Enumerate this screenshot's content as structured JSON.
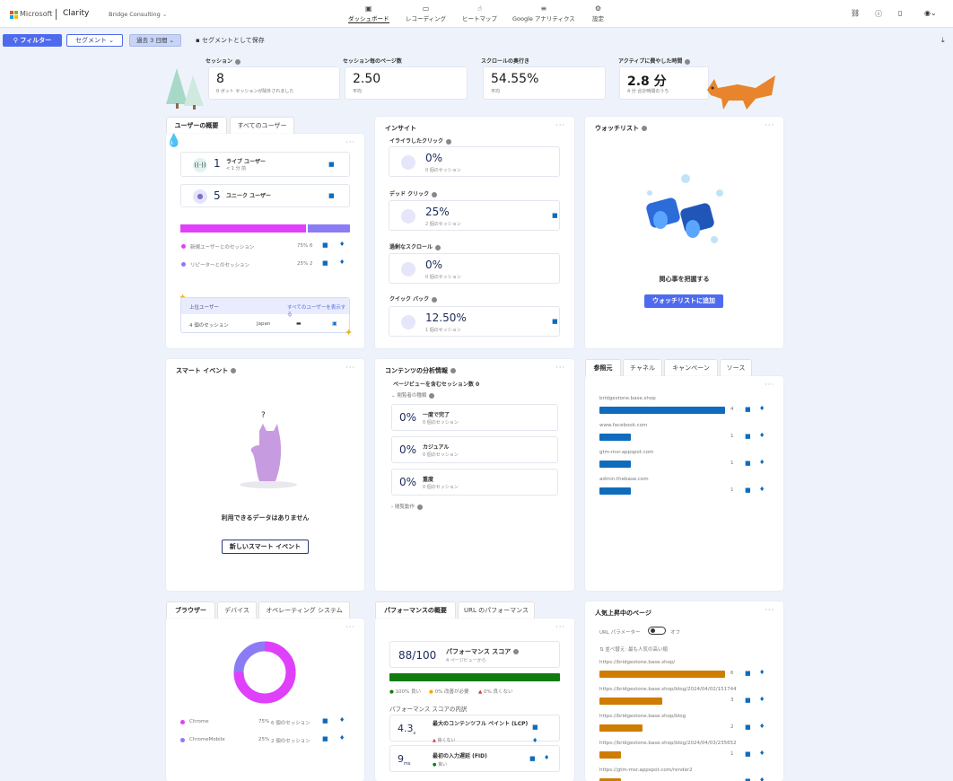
{
  "header": {
    "brand": "Microsoft",
    "app": "Clarity",
    "project": "Bridge Consulting",
    "nav": [
      {
        "label": "ダッシュボード",
        "icon": "dashboard-icon"
      },
      {
        "label": "レコーディング",
        "icon": "recording-icon"
      },
      {
        "label": "ヒートマップ",
        "icon": "heatmap-icon"
      },
      {
        "label": "Google アナリティクス",
        "icon": "analytics-icon"
      },
      {
        "label": "設定",
        "icon": "settings-icon"
      }
    ]
  },
  "filterbar": {
    "filter": "フィルター",
    "segment": "セグメント",
    "date": "過去 3 日間",
    "save": "セグメントとして保存"
  },
  "metrics": [
    {
      "label": "セッション",
      "value": "8",
      "sub": "0 ボット セッションが除外されました"
    },
    {
      "label": "セッション毎のページ数",
      "value": "2.50",
      "sub": "平均"
    },
    {
      "label": "スクロールの奥行き",
      "value": "54.55%",
      "sub": "平均"
    },
    {
      "label": "アクティブに費やした時間",
      "value": "2.8 分",
      "sub": "4 分 合計時間のうち"
    }
  ],
  "users": {
    "tab1": "ユーザーの概要",
    "tab2": "すべてのユーザー",
    "live_count": "1",
    "live_label": "ライブ ユーザー",
    "live_sub": "< 1 分 前",
    "unique_count": "5",
    "unique_label": "ユニーク ユーザー",
    "new_label": "新規ユーザーとのセッション",
    "new_pct": "75%",
    "new_count": "6",
    "new_ratio": 0.75,
    "ret_label": "リピーターとのセッション",
    "ret_pct": "25%",
    "ret_count": "2",
    "top_label": "上位ユーザー",
    "top_link": "すべてのユーザーを表示する",
    "top_sessions": "4 個のセッション",
    "top_country": "Japan"
  },
  "insights": {
    "title": "インサイト",
    "items": [
      {
        "label": "イライラしたクリック",
        "value": "0%",
        "sub": "0 個のセッション"
      },
      {
        "label": "デッド クリック",
        "value": "25%",
        "sub": "2 個のセッション"
      },
      {
        "label": "過剰なスクロール",
        "value": "0%",
        "sub": "0 個のセッション"
      },
      {
        "label": "クイック バック",
        "value": "12.50%",
        "sub": "1 個のセッション"
      }
    ]
  },
  "watchlist": {
    "title": "ウォッチリスト",
    "text": "関心事を把握する",
    "button": "ウォッチリストに追加"
  },
  "smart": {
    "title": "スマート イベント",
    "empty": "利用できるデータはありません",
    "button": "新しいスマート イベント"
  },
  "content": {
    "title": "コンテンツの分析情報",
    "subtitle": "ページビューを含むセッション数 0",
    "group1": "閲覧者の種類",
    "group2": "閲覧動作",
    "items": [
      {
        "value": "0%",
        "label": "一度で完了",
        "sub": "0 個のセッション"
      },
      {
        "value": "0%",
        "label": "カジュアル",
        "sub": "0 個のセッション"
      },
      {
        "value": "0%",
        "label": "重度",
        "sub": "0 個のセッション"
      }
    ]
  },
  "referrers": {
    "tabs": [
      "参照元",
      "チャネル",
      "キャンペーン",
      "ソース"
    ],
    "items": [
      {
        "name": "bridgestone.base.shop",
        "count": "4",
        "share": 1.0
      },
      {
        "name": "www.facebook.com",
        "count": "1",
        "share": 0.25
      },
      {
        "name": "gtm-msr.appspot.com",
        "count": "1",
        "share": 0.25
      },
      {
        "name": "admin.thebase.com",
        "count": "1",
        "share": 0.25
      }
    ]
  },
  "browsers": {
    "tabs": [
      "ブラウザー",
      "デバイス",
      "オペレーティング システム"
    ],
    "items": [
      {
        "name": "Chrome",
        "pct": "75%",
        "sessions": "6 個のセッション",
        "color": "#e040fb",
        "share": 0.75
      },
      {
        "name": "ChromeMobile",
        "pct": "25%",
        "sessions": "2 個のセッション",
        "color": "#8b7cf6",
        "share": 0.25
      }
    ]
  },
  "perf": {
    "tabs": [
      "パフォーマンスの概要",
      "URL のパフォーマンス"
    ],
    "score": "88/100",
    "score_label": "パフォーマンス スコア",
    "score_sub": "4 ページビューから",
    "legend": [
      "100% 良い",
      "0% 改善が必要",
      "0% 良くない"
    ],
    "breakdown": "パフォーマンス スコアの内訳",
    "lcp_val": "4.3",
    "lcp_unit": "s",
    "lcp_label": "最大のコンテンツフル ペイント (LCP)",
    "lcp_status": "良くない",
    "fid_val": "9",
    "fid_unit": "ms",
    "fid_label": "最初の入力遅延 (FID)",
    "fid_status": "良い"
  },
  "popular": {
    "title": "人気上昇中のページ",
    "toggle_label": "URL パラメーター",
    "toggle_state": "オフ",
    "sort": "並べ替え: 最も人気の高い順",
    "items": [
      {
        "url": "https://bridgestone.base.shop/",
        "count": "6",
        "share": 1.0
      },
      {
        "url": "https://bridgestone.base.shop/blog/2024/04/02/151744",
        "count": "3",
        "share": 0.5
      },
      {
        "url": "https://bridgestone.base.shop/blog",
        "count": "2",
        "share": 0.34
      },
      {
        "url": "https://bridgestone.base.shop/blog/2024/04/03/235652",
        "count": "1",
        "share": 0.17
      },
      {
        "url": "https://gtm-msr.appspot.com/render2",
        "count": "",
        "share": 0.17
      }
    ]
  },
  "colors": {
    "accent": "#4f6bed",
    "blue": "#0f6cbd",
    "magenta": "#e040fb",
    "purple": "#8b7cf6",
    "orange": "#d07c00",
    "green": "#107c10"
  }
}
